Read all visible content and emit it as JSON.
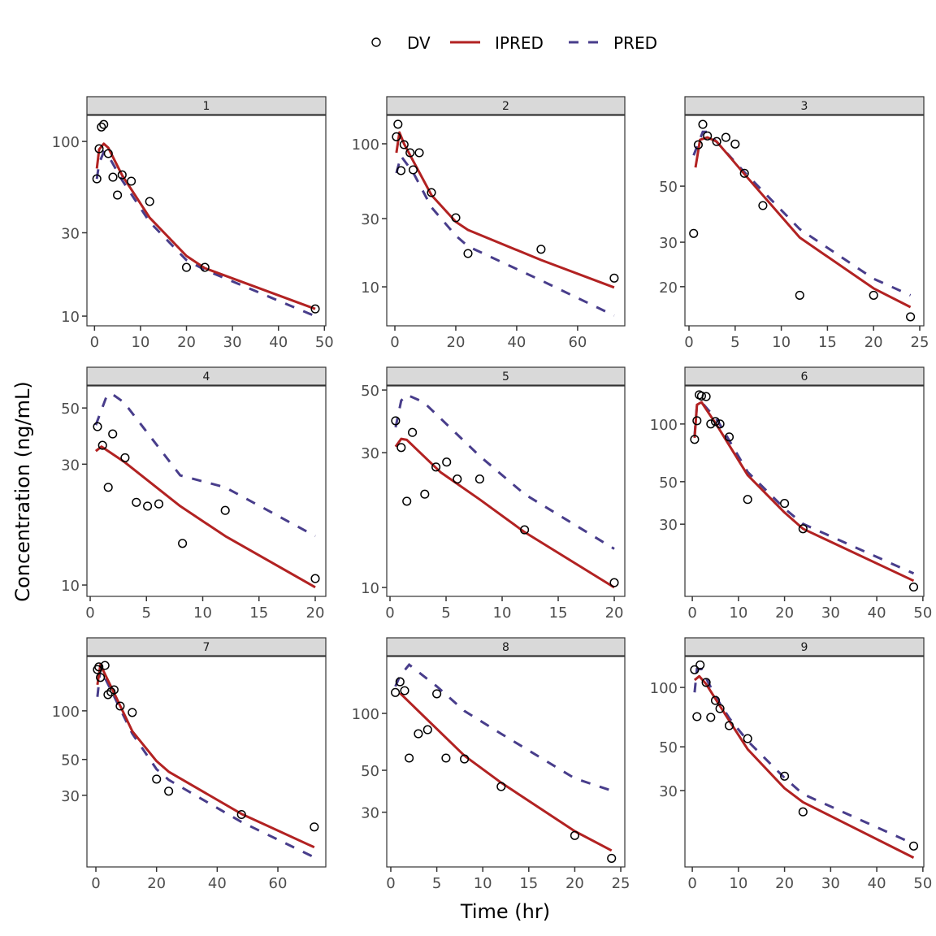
{
  "chart_data": {
    "type": "line",
    "title": "",
    "xlabel": "Time (hr)",
    "ylabel": "Concentration (ng/mL)",
    "yscale": "log10",
    "grid": false,
    "legend": {
      "position": "top",
      "entries": [
        {
          "key": "DV",
          "label": "DV",
          "kind": "point",
          "color": "#000000"
        },
        {
          "key": "IPRED",
          "label": "IPRED",
          "kind": "solid-line",
          "color": "#B22222"
        },
        {
          "key": "PRED",
          "label": "PRED",
          "kind": "dashed-line",
          "color": "#483D8B"
        }
      ]
    },
    "panels": [
      {
        "id": "1",
        "xlim": [
          -1.65,
          50.3
        ],
        "ylim": [
          8.8,
          141
        ],
        "xticks": [
          0,
          10,
          20,
          30,
          40,
          50
        ],
        "yticks": [
          10,
          30,
          100
        ],
        "DV": {
          "x": [
            0.5,
            1,
            1.5,
            2,
            3,
            4,
            5,
            6,
            8,
            12,
            20,
            24,
            48
          ],
          "y": [
            61.1,
            90.8,
            121,
            125,
            85.2,
            62.4,
            49.3,
            64.4,
            59.2,
            45.3,
            19.0,
            19.0,
            11.0
          ]
        },
        "IPRED": {
          "x": [
            0.5,
            1,
            2,
            3,
            6,
            12,
            20,
            24,
            48
          ],
          "y": [
            70,
            90,
            97,
            92,
            64,
            36.6,
            22.1,
            18.8,
            11.0
          ]
        },
        "PRED": {
          "x": [
            0.5,
            1,
            2,
            3,
            6,
            12,
            20,
            24,
            48
          ],
          "y": [
            61,
            75,
            87,
            83,
            60,
            34.6,
            20.9,
            18.4,
            10.0
          ]
        }
      },
      {
        "id": "2",
        "xlim": [
          -2.67,
          75.5
        ],
        "ylim": [
          5.34,
          158
        ],
        "xticks": [
          0,
          20,
          40,
          60
        ],
        "yticks": [
          10,
          30,
          100
        ],
        "DV": {
          "x": [
            0.5,
            1,
            2,
            3,
            5,
            6,
            8,
            12,
            20,
            24,
            48,
            72
          ],
          "y": [
            112,
            137,
            64.9,
            98.7,
            86.6,
            65.8,
            86.6,
            45.6,
            30.4,
            17.1,
            18.3,
            11.5
          ]
        },
        "IPRED": {
          "x": [
            0.5,
            1.5,
            3,
            6,
            12,
            20,
            24,
            48,
            72
          ],
          "y": [
            86.6,
            120,
            100,
            76,
            43.8,
            28.5,
            25,
            15.4,
            9.9
          ]
        },
        "PRED": {
          "x": [
            0.5,
            2,
            6,
            12,
            20,
            24,
            48,
            72
          ],
          "y": [
            62.4,
            82,
            63,
            36,
            22.8,
            19.2,
            11.1,
            6.3
          ]
        }
      },
      {
        "id": "3",
        "xlim": [
          -0.44,
          25.44
        ],
        "ylim": [
          14.0,
          95.3
        ],
        "xticks": [
          0,
          5,
          10,
          15,
          20,
          25
        ],
        "yticks": [
          20,
          30,
          50
        ],
        "DV": {
          "x": [
            0.5,
            1,
            1.5,
            2,
            3,
            4,
            5,
            6,
            8,
            12,
            20,
            24
          ],
          "y": [
            32.5,
            72.9,
            87.8,
            79.0,
            75.1,
            78.0,
            73.4,
            56.2,
            41.9,
            18.5,
            18.5,
            15.2
          ]
        },
        "IPRED": {
          "x": [
            0.7,
            1.2,
            2,
            3,
            6.3,
            12,
            20,
            24
          ],
          "y": [
            59.3,
            76.3,
            78,
            75,
            54.2,
            31.3,
            19.7,
            16.6
          ]
        },
        "PRED": {
          "x": [
            0.5,
            1.5,
            2,
            6,
            12,
            20,
            24
          ],
          "y": [
            66.2,
            82,
            82,
            56.8,
            33.8,
            21.5,
            18.5
          ]
        }
      },
      {
        "id": "4",
        "xlim": [
          -0.29,
          20.94
        ],
        "ylim": [
          9.02,
          61.1
        ],
        "xticks": [
          0,
          5,
          10,
          15,
          20
        ],
        "yticks": [
          10,
          30,
          50
        ],
        "DV": {
          "x": [
            0.65,
            1.1,
            1.6,
            2,
            3.1,
            4.1,
            5.1,
            6.1,
            8.2,
            12,
            20
          ],
          "y": [
            42.2,
            35.6,
            24.3,
            39.5,
            31.8,
            21.2,
            20.5,
            20.9,
            14.6,
            19.7,
            10.6
          ]
        },
        "IPRED": {
          "x": [
            0.5,
            1,
            3,
            8,
            12,
            20
          ],
          "y": [
            33.8,
            35.2,
            30.7,
            20.5,
            15.6,
            9.8
          ]
        },
        "PRED": {
          "x": [
            0.5,
            1.5,
            2,
            3,
            8,
            12,
            20
          ],
          "y": [
            42.8,
            56.3,
            56.6,
            52.6,
            27.1,
            24.3,
            15.6
          ]
        }
      },
      {
        "id": "5",
        "xlim": [
          -0.29,
          20.94
        ],
        "ylim": [
          9.3,
          51.7
        ],
        "xticks": [
          0,
          5,
          10,
          15,
          20
        ],
        "yticks": [
          10,
          30,
          50
        ],
        "DV": {
          "x": [
            0.5,
            1,
            1.5,
            2,
            3.1,
            4.1,
            5.05,
            6,
            8,
            12,
            20
          ],
          "y": [
            38.9,
            31.3,
            20.2,
            35.4,
            21.4,
            26.7,
            27.8,
            24.2,
            24.2,
            16.0,
            10.4
          ]
        },
        "IPRED": {
          "x": [
            0.5,
            1,
            1.5,
            4.5,
            8,
            12,
            20
          ],
          "y": [
            31.5,
            33.6,
            33.3,
            25.6,
            20.5,
            15.7,
            10.0
          ]
        },
        "PRED": {
          "x": [
            0.5,
            1,
            1.5,
            3,
            8,
            12,
            20
          ],
          "y": [
            36.9,
            45.9,
            48.1,
            45.3,
            29.2,
            21.4,
            13.7
          ]
        }
      },
      {
        "id": "6",
        "xlim": [
          -1.6,
          50.2
        ],
        "ylim": [
          12.6,
          158
        ],
        "xticks": [
          0,
          10,
          20,
          30,
          40,
          50
        ],
        "yticks": [
          30,
          50,
          100
        ],
        "DV": {
          "x": [
            0.5,
            1,
            1.5,
            2,
            3,
            4,
            5,
            6,
            8,
            12,
            20,
            24,
            48
          ],
          "y": [
            83.1,
            104,
            142,
            140,
            139,
            100,
            103,
            100,
            85.6,
            40.4,
            38.5,
            28.4,
            14.1
          ]
        },
        "IPRED": {
          "x": [
            0.5,
            1,
            2,
            5.5,
            12,
            20,
            24,
            48
          ],
          "y": [
            84.7,
            126,
            130,
            97,
            54.1,
            34.5,
            28.4,
            15.2
          ]
        },
        "PRED": {
          "x": [
            0.5,
            1,
            2,
            5.5,
            12,
            20,
            24,
            48
          ],
          "y": [
            87,
            126,
            130,
            104,
            56.2,
            36.2,
            30.1,
            16.6
          ]
        }
      },
      {
        "id": "7",
        "xlim": [
          -2.95,
          75.8
        ],
        "ylim": [
          10.8,
          217
        ],
        "xticks": [
          0,
          20,
          40,
          60
        ],
        "yticks": [
          30,
          50,
          100
        ],
        "DV": {
          "x": [
            0.5,
            1,
            1.5,
            3,
            4,
            5,
            6,
            8,
            12,
            20,
            24,
            48,
            72
          ],
          "y": [
            180,
            187,
            161,
            191,
            126,
            131,
            135,
            107,
            97.7,
            37.8,
            31.8,
            22.8,
            19.1
          ]
        },
        "IPRED": {
          "x": [
            0.5,
            1.5,
            6,
            12,
            20,
            24,
            48,
            72
          ],
          "y": [
            145,
            193,
            129,
            74.8,
            48.8,
            42,
            23,
            14.3
          ]
        },
        "PRED": {
          "x": [
            0.5,
            1.5,
            6,
            12,
            20,
            24,
            48,
            72
          ],
          "y": [
            122,
            182,
            123,
            72.3,
            43.5,
            37.4,
            20.5,
            12.4
          ]
        }
      },
      {
        "id": "8",
        "xlim": [
          -0.44,
          25.44
        ],
        "ylim": [
          15.4,
          200
        ],
        "xticks": [
          0,
          5,
          10,
          15,
          20,
          25
        ],
        "yticks": [
          30,
          50,
          100
        ],
        "DV": {
          "x": [
            0.5,
            1,
            1.5,
            2,
            3,
            4,
            5,
            6,
            8,
            12,
            20,
            24
          ],
          "y": [
            129,
            147,
            132,
            58,
            78,
            82,
            127,
            58,
            57.4,
            41,
            22.6,
            17.1
          ]
        },
        "IPRED": {
          "x": [
            1,
            5,
            8,
            12,
            20,
            24
          ],
          "y": [
            128,
            82.8,
            59.7,
            43.0,
            23.8,
            18.8
          ]
        },
        "PRED": {
          "x": [
            0.5,
            1,
            2,
            5,
            8,
            12,
            20,
            24
          ],
          "y": [
            139,
            158,
            181,
            139,
            103,
            78,
            45.3,
            39
          ]
        }
      },
      {
        "id": "9",
        "xlim": [
          -1.6,
          50.2
        ],
        "ylim": [
          12.3,
          143.5
        ],
        "xticks": [
          0,
          10,
          20,
          30,
          40,
          50
        ],
        "yticks": [
          30,
          50,
          100
        ],
        "DV": {
          "x": [
            0.5,
            1,
            1.7,
            3,
            4,
            5,
            6,
            8,
            12,
            20,
            24,
            48
          ],
          "y": [
            123,
            71.1,
            130,
            106,
            70.5,
            85.9,
            78.1,
            64,
            55,
            35.5,
            23.4,
            15.7
          ]
        },
        "IPRED": {
          "x": [
            0.5,
            1.5,
            3,
            8,
            12,
            20,
            24,
            48
          ],
          "y": [
            109,
            114,
            104,
            67.8,
            48.6,
            30.8,
            26.2,
            13.7
          ]
        },
        "PRED": {
          "x": [
            0.5,
            1,
            2,
            5,
            8,
            12,
            20,
            24,
            48
          ],
          "y": [
            94.4,
            124,
            124,
            90.1,
            70,
            53.5,
            34.8,
            28.8,
            16.1
          ]
        }
      }
    ]
  },
  "colors": {
    "strip_fill": "#D9D9D9",
    "panel_border": "#333333",
    "tick_text": "#4D4D4D",
    "ipred": "#B22222",
    "pred": "#483D8B",
    "dv": "#000000"
  }
}
